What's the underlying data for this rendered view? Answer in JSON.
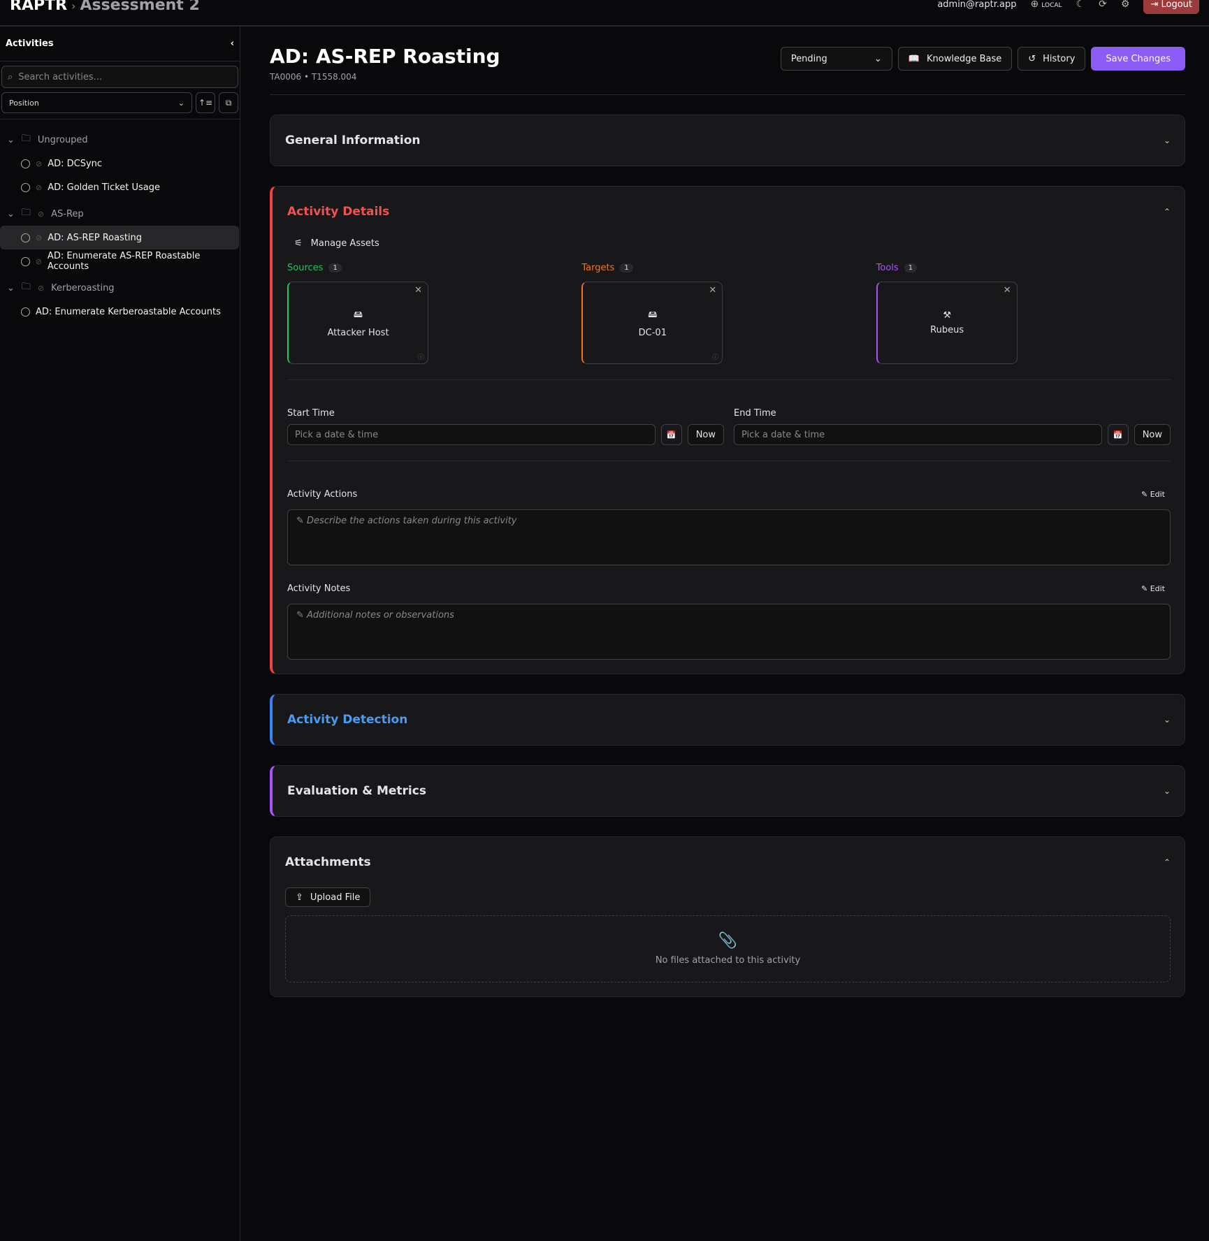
{
  "header": {
    "brand": "RAPTR",
    "separator": "›",
    "project": "Assessment 2",
    "user": "admin@raptr.app",
    "mode": "LOCAL",
    "logout": "Logout"
  },
  "sidebar": {
    "title": "Activities",
    "search_placeholder": "Search activities...",
    "sort": "Position",
    "groups": [
      {
        "name": "Ungrouped",
        "items": [
          "AD: DCSync",
          "AD: Golden Ticket Usage"
        ]
      },
      {
        "name": "AS-Rep",
        "items": [
          "AD: AS-REP Roasting",
          "AD: Enumerate AS-REP Roastable Accounts"
        ]
      },
      {
        "name": "Kerberoasting",
        "items": [
          "AD: Enumerate Kerberoastable Accounts"
        ]
      }
    ],
    "active": "AD: AS-REP Roasting"
  },
  "page": {
    "title": "AD: AS-REP Roasting",
    "subtitle": "TA0006 • T1558.004",
    "status": "Pending",
    "kb": "Knowledge Base",
    "history": "History",
    "save": "Save Changes"
  },
  "sections": {
    "general": "General Information",
    "details": "Activity Details",
    "detection": "Activity Detection",
    "evaluation": "Evaluation & Metrics",
    "attachments": "Attachments"
  },
  "details": {
    "manage_assets": "Manage Assets",
    "sources": {
      "label": "Sources",
      "count": "1",
      "asset": "Attacker Host"
    },
    "targets": {
      "label": "Targets",
      "count": "1",
      "asset": "DC-01"
    },
    "tools": {
      "label": "Tools",
      "count": "1",
      "asset": "Rubeus"
    },
    "start_label": "Start Time",
    "end_label": "End Time",
    "date_placeholder": "Pick a date & time",
    "now": "Now",
    "actions_label": "Activity Actions",
    "actions_placeholder": "Describe the actions taken during this activity",
    "notes_label": "Activity Notes",
    "notes_placeholder": "Additional notes or observations",
    "edit": "Edit"
  },
  "attachments": {
    "upload": "Upload File",
    "empty": "No files attached to this activity"
  },
  "colors": {
    "details": "#ef4444",
    "detection": "#3b82f6",
    "evaluation": "#a855f7",
    "sources": "#22c55e",
    "targets": "#f97316",
    "tools": "#a855f7",
    "primary": "#8b5cf6"
  }
}
